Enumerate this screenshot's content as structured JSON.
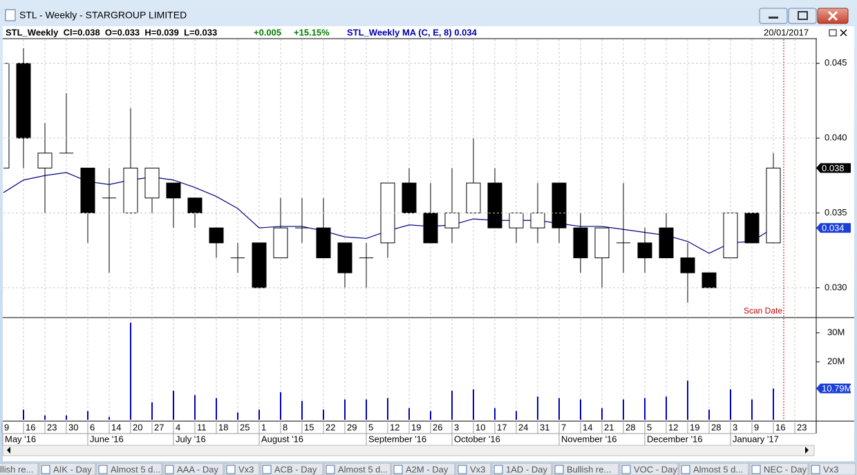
{
  "window": {
    "title": "STL - Weekly - STARGROUP LIMITED"
  },
  "header": {
    "summary": "STL_Weekly  Cl=0.038  O=0.033  H=0.039  L=0.033",
    "change": "+0.005",
    "change_pct": "+15.15%",
    "ma": "STL_Weekly MA (C, E, 8) 0.034",
    "date": "20/01/2017"
  },
  "chart_data": {
    "type": "candlestick",
    "categories": [
      "9",
      "16",
      "23",
      "30",
      "6",
      "14",
      "20",
      "27",
      "4",
      "11",
      "18",
      "25",
      "1",
      "8",
      "15",
      "22",
      "29",
      "5",
      "12",
      "19",
      "26",
      "3",
      "10",
      "17",
      "24",
      "31",
      "7",
      "14",
      "21",
      "28",
      "5",
      "12",
      "19",
      "28",
      "3",
      "9",
      "16",
      "23"
    ],
    "months": [
      "May '16",
      "June '16",
      "July '16",
      "August '16",
      "September '16",
      "October '16",
      "November '16",
      "December '16",
      "January '17"
    ],
    "open": [
      0.038,
      0.045,
      0.038,
      0.039,
      0.038,
      0.036,
      0.035,
      0.036,
      0.037,
      0.036,
      0.034,
      0.032,
      0.033,
      0.032,
      0.034,
      0.034,
      0.033,
      0.032,
      0.033,
      0.037,
      0.035,
      0.034,
      0.035,
      0.037,
      0.034,
      0.034,
      0.037,
      0.034,
      0.032,
      0.033,
      0.033,
      0.034,
      0.032,
      0.031,
      0.032,
      0.035,
      0.033,
      null
    ],
    "high": [
      0.045,
      0.046,
      0.041,
      0.043,
      0.038,
      0.038,
      0.042,
      0.038,
      0.037,
      0.036,
      0.034,
      0.033,
      0.033,
      0.036,
      0.036,
      0.036,
      0.033,
      0.033,
      0.037,
      0.038,
      0.037,
      0.038,
      0.04,
      0.038,
      0.035,
      0.037,
      0.037,
      0.035,
      0.034,
      0.037,
      0.034,
      0.035,
      0.033,
      0.031,
      0.035,
      0.035,
      0.039,
      null
    ],
    "low": [
      0.036,
      0.038,
      0.035,
      0.039,
      0.033,
      0.031,
      0.035,
      0.035,
      0.034,
      0.034,
      0.032,
      0.031,
      0.03,
      0.032,
      0.033,
      0.032,
      0.03,
      0.03,
      0.032,
      0.035,
      0.033,
      0.033,
      0.035,
      0.034,
      0.033,
      0.033,
      0.033,
      0.031,
      0.03,
      0.031,
      0.031,
      0.032,
      0.029,
      0.03,
      0.032,
      0.033,
      0.033,
      null
    ],
    "close": [
      0.045,
      0.04,
      0.039,
      0.039,
      0.035,
      0.036,
      0.038,
      0.038,
      0.036,
      0.035,
      0.033,
      0.032,
      0.03,
      0.034,
      0.034,
      0.032,
      0.031,
      0.032,
      0.037,
      0.035,
      0.033,
      0.035,
      0.037,
      0.034,
      0.035,
      0.035,
      0.034,
      0.032,
      0.034,
      0.033,
      0.032,
      0.032,
      0.031,
      0.03,
      0.035,
      0.033,
      0.038,
      null
    ],
    "up_color": "#ffffff",
    "down_color": "#000000",
    "ma": {
      "color": "#000080",
      "values": [
        0.0363,
        0.0372,
        0.0375,
        0.0377,
        0.0371,
        0.0369,
        0.0372,
        0.0374,
        0.0372,
        0.0367,
        0.0361,
        0.0353,
        0.034,
        0.0341,
        0.0341,
        0.0338,
        0.0334,
        0.0333,
        0.0338,
        0.0342,
        0.0341,
        0.0342,
        0.0346,
        0.0345,
        0.0345,
        0.0345,
        0.0343,
        0.0341,
        0.0341,
        0.0339,
        0.0337,
        0.0335,
        0.0331,
        0.0323,
        0.033,
        0.0331,
        0.034,
        null
      ]
    },
    "ylim": [
      0.0281,
      0.0466
    ],
    "yticks": [
      {
        "value": 0.03,
        "label": "0.030"
      },
      0.035,
      {
        "value": 0.04,
        "label": "0.040"
      },
      0.045
    ],
    "annotation": "Scan Date",
    "volume": {
      "color": "#0000c0",
      "values": [
        4000000,
        3500000,
        1500000,
        1500000,
        3000000,
        1000000,
        33500000,
        6000000,
        10000000,
        8500000,
        7500000,
        2500000,
        3500000,
        9500000,
        6500000,
        3500000,
        7000000,
        7000000,
        7500000,
        4000000,
        3000000,
        10000000,
        10500000,
        4000000,
        3000000,
        8000000,
        7500000,
        7000000,
        4000000,
        7000000,
        7500000,
        8000000,
        13500000,
        3500000,
        10500000,
        7000000,
        10790000,
        null
      ],
      "value_labels": [
        null,
        null,
        null,
        null,
        null,
        null,
        null,
        null,
        null,
        null,
        null,
        null,
        null,
        null,
        null,
        null,
        null,
        null,
        null,
        null,
        null,
        null,
        null,
        null,
        null,
        null,
        null,
        null,
        null,
        null,
        null,
        null,
        null,
        null,
        null,
        null,
        "10.79M",
        null
      ],
      "ylim": [
        0,
        34760000
      ],
      "yticks": [
        {
          "value": 20000000,
          "label": "20M"
        },
        {
          "value": 30000000,
          "label": "30M"
        }
      ]
    }
  },
  "taskbar": [
    "llish re...",
    "AIK - Day",
    "Almost 5 d...",
    "AAA - Day",
    "Vx3",
    "ACB - Day",
    "Almost 5 d...",
    "A2M - Day",
    "Vx3",
    "1AD - Day",
    "Bullish re...",
    "VOC - Day",
    "Almost 5 d...",
    "NEC - Day",
    "Vx3"
  ]
}
